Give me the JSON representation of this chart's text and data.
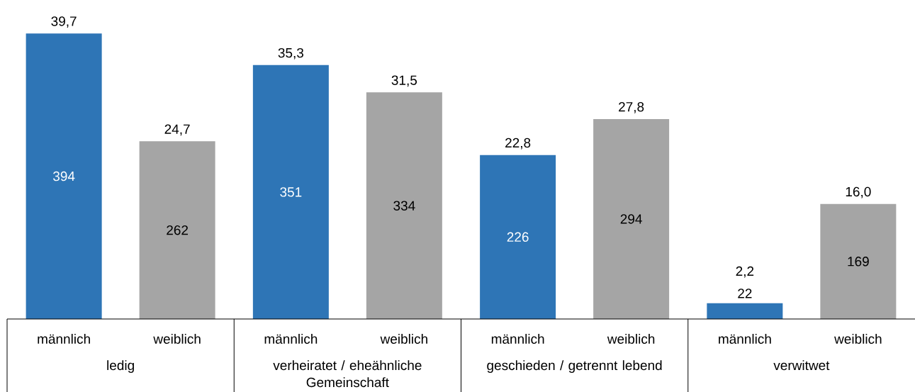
{
  "chart_data": {
    "type": "bar",
    "categories": [
      "ledig",
      "verheiratet / eheähnliche Gemeinschaft",
      "geschieden / getrennt lebend",
      "verwitwet"
    ],
    "series": [
      {
        "name": "männlich",
        "color": "#2e75b6",
        "values": [
          39.7,
          35.3,
          22.8,
          2.2
        ],
        "value_labels": [
          "39,7",
          "35,3",
          "22,8",
          "2,2"
        ]
      },
      {
        "name": "weiblich",
        "color": "#a5a5a5",
        "values": [
          24.7,
          31.5,
          27.8,
          16.0
        ],
        "value_labels": [
          "24,7",
          "31,5",
          "27,8",
          "16,0"
        ]
      }
    ],
    "annotations": [
      "394",
      "262",
      "351",
      "334",
      "226",
      "294",
      "22",
      "169"
    ]
  }
}
